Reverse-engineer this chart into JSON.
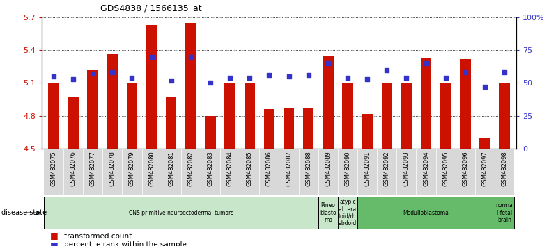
{
  "title": "GDS4838 / 1566135_at",
  "samples": [
    "GSM482075",
    "GSM482076",
    "GSM482077",
    "GSM482078",
    "GSM482079",
    "GSM482080",
    "GSM482081",
    "GSM482082",
    "GSM482083",
    "GSM482084",
    "GSM482085",
    "GSM482086",
    "GSM482087",
    "GSM482088",
    "GSM482089",
    "GSM482090",
    "GSM482091",
    "GSM482092",
    "GSM482093",
    "GSM482094",
    "GSM482095",
    "GSM482096",
    "GSM482097",
    "GSM482098"
  ],
  "transformed_count": [
    5.1,
    4.97,
    5.22,
    5.37,
    5.1,
    5.63,
    4.97,
    5.65,
    4.8,
    5.1,
    5.1,
    4.86,
    4.87,
    4.87,
    5.35,
    5.1,
    4.82,
    5.1,
    5.1,
    5.33,
    5.1,
    5.32,
    4.6,
    5.1
  ],
  "percentile_rank": [
    55,
    53,
    57,
    58,
    54,
    70,
    52,
    70,
    50,
    54,
    54,
    56,
    55,
    56,
    65,
    54,
    53,
    60,
    54,
    65,
    54,
    58,
    47,
    58
  ],
  "ylim_left": [
    4.5,
    5.7
  ],
  "ylim_right": [
    0,
    100
  ],
  "yticks_left": [
    4.5,
    4.8,
    5.1,
    5.4,
    5.7
  ],
  "ytick_labels_left": [
    "4.5",
    "4.8",
    "5.1",
    "5.4",
    "5.7"
  ],
  "yticks_right": [
    0,
    25,
    50,
    75,
    100
  ],
  "ytick_labels_right": [
    "0",
    "25",
    "50",
    "75",
    "100%"
  ],
  "bar_color": "#CC1100",
  "dot_color": "#3333CC",
  "bar_bottom": 4.5,
  "disease_groups": [
    {
      "label": "CNS primitive neuroectodermal tumors",
      "start": 0,
      "end": 14,
      "color": "#c8e6c9"
    },
    {
      "label": "Pineo\nblasto\nma",
      "start": 14,
      "end": 15,
      "color": "#c8e6c9"
    },
    {
      "label": "atypic\nal tera\ntoid/rh\nabdoid",
      "start": 15,
      "end": 16,
      "color": "#c8e6c9"
    },
    {
      "label": "Medulloblastoma",
      "start": 16,
      "end": 23,
      "color": "#66bb6a"
    },
    {
      "label": "norma\nl fetal\nbrain",
      "start": 23,
      "end": 24,
      "color": "#66bb6a"
    }
  ],
  "legend_items": [
    {
      "label": "transformed count",
      "color": "#CC1100"
    },
    {
      "label": "percentile rank within the sample",
      "color": "#3333CC"
    }
  ],
  "disease_state_label": "disease state",
  "tick_label_color_left": "#CC1100",
  "tick_label_color_right": "#3333CC"
}
